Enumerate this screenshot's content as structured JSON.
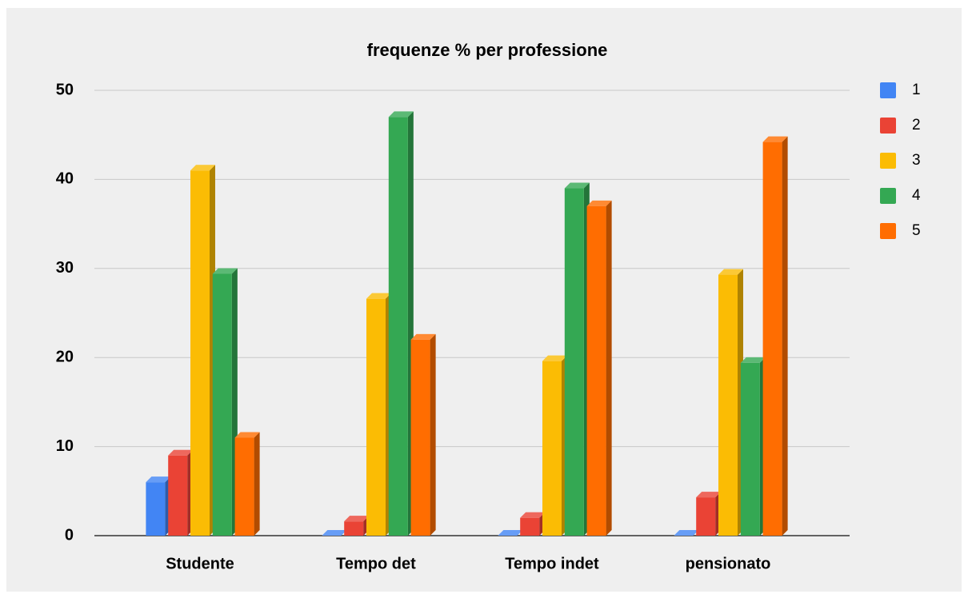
{
  "chart_data": {
    "type": "bar3d",
    "title": "frequenze % per professione",
    "categories": [
      "Studente",
      "Tempo det",
      "Tempo indet",
      "pensionato"
    ],
    "series": [
      {
        "name": "1",
        "color": "#4285f4",
        "values": [
          6,
          0,
          0,
          0
        ]
      },
      {
        "name": "2",
        "color": "#ea4335",
        "values": [
          9,
          1.6,
          2,
          4.3
        ]
      },
      {
        "name": "3",
        "color": "#fbbc04",
        "values": [
          41,
          26.6,
          19.6,
          29.3
        ]
      },
      {
        "name": "4",
        "color": "#34a853",
        "values": [
          29.4,
          47,
          39,
          19.4
        ]
      },
      {
        "name": "5",
        "color": "#ff6d01",
        "values": [
          11,
          22,
          37,
          44.2
        ]
      }
    ],
    "ylim": [
      0,
      50
    ],
    "yticks": [
      0,
      10,
      20,
      30,
      40,
      50
    ],
    "grid": true,
    "legend": "right"
  }
}
